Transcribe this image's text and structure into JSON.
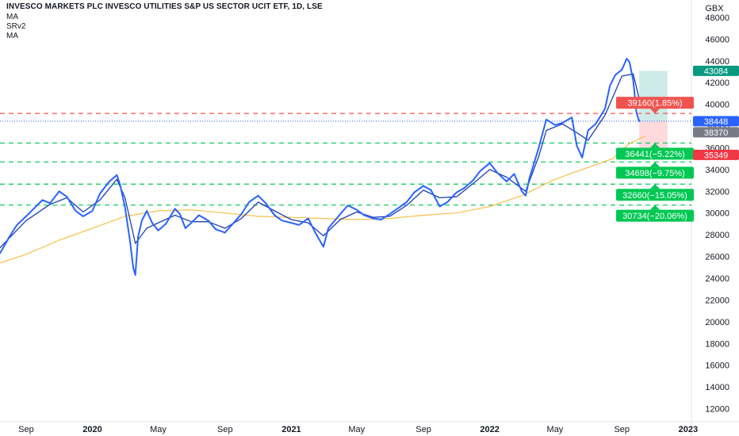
{
  "header": {
    "title": "INVESCO MARKETS PLC INVESCO UTILITIES S&P US SECTOR UCIT ETF, 1D, LSE",
    "indicator_1": "MA",
    "indicator_2": "SRv2",
    "indicator_3": "MA"
  },
  "colors": {
    "price": "#2962ff",
    "price_ma": "#1e40af",
    "slow_ma": "#f5c04a",
    "red_line": "#ef5350",
    "green_line": "#00c853",
    "price_dots": "#2962ff",
    "long_zone": "#b2dfdb",
    "stop_zone": "#ffcdd2",
    "axis_text": "#131722",
    "grid": "#f0f3fa"
  },
  "chart_data": {
    "type": "line",
    "currency": "GBX",
    "y_axis": {
      "ylim": [
        10800,
        49600
      ],
      "ticks": [
        12000,
        14000,
        16000,
        18000,
        20000,
        22000,
        24000,
        26000,
        28000,
        30000,
        32000,
        34000,
        36000,
        38000,
        40000,
        42000,
        44000,
        46000,
        48000
      ]
    },
    "x_axis": {
      "range": [
        "2019-07-15",
        "2023-01-07"
      ],
      "ticks": [
        {
          "date": "2019-09-01",
          "label": "Sep",
          "bold": false
        },
        {
          "date": "2020-01-01",
          "label": "2020",
          "bold": true
        },
        {
          "date": "2020-05-01",
          "label": "May",
          "bold": false
        },
        {
          "date": "2020-09-01",
          "label": "Sep",
          "bold": false
        },
        {
          "date": "2021-01-01",
          "label": "2021",
          "bold": true
        },
        {
          "date": "2021-05-01",
          "label": "May",
          "bold": false
        },
        {
          "date": "2021-09-01",
          "label": "Sep",
          "bold": false
        },
        {
          "date": "2022-01-01",
          "label": "2022",
          "bold": true
        },
        {
          "date": "2022-05-01",
          "label": "May",
          "bold": false
        },
        {
          "date": "2022-09-01",
          "label": "Sep",
          "bold": false
        },
        {
          "date": "2023-01-01",
          "label": "2023",
          "bold": true
        }
      ]
    },
    "price_series": [
      [
        "2019-07-15",
        26300
      ],
      [
        "2019-08-01",
        27800
      ],
      [
        "2019-08-15",
        28900
      ],
      [
        "2019-09-01",
        29700
      ],
      [
        "2019-09-15",
        30400
      ],
      [
        "2019-10-01",
        31200
      ],
      [
        "2019-10-15",
        30900
      ],
      [
        "2019-11-01",
        32000
      ],
      [
        "2019-11-15",
        31500
      ],
      [
        "2019-12-01",
        30200
      ],
      [
        "2019-12-15",
        29700
      ],
      [
        "2020-01-01",
        30200
      ],
      [
        "2020-01-15",
        31800
      ],
      [
        "2020-02-01",
        32900
      ],
      [
        "2020-02-15",
        33500
      ],
      [
        "2020-02-21",
        32600
      ],
      [
        "2020-03-01",
        30500
      ],
      [
        "2020-03-10",
        27500
      ],
      [
        "2020-03-16",
        25000
      ],
      [
        "2020-03-20",
        24300
      ],
      [
        "2020-03-25",
        27800
      ],
      [
        "2020-04-01",
        29300
      ],
      [
        "2020-04-10",
        30200
      ],
      [
        "2020-04-20",
        29100
      ],
      [
        "2020-05-01",
        28400
      ],
      [
        "2020-05-15",
        29000
      ],
      [
        "2020-06-01",
        30400
      ],
      [
        "2020-06-10",
        29900
      ],
      [
        "2020-06-20",
        28600
      ],
      [
        "2020-07-01",
        29100
      ],
      [
        "2020-07-15",
        29800
      ],
      [
        "2020-08-01",
        29300
      ],
      [
        "2020-08-15",
        28500
      ],
      [
        "2020-09-01",
        28200
      ],
      [
        "2020-09-15",
        29000
      ],
      [
        "2020-10-01",
        29900
      ],
      [
        "2020-10-15",
        31000
      ],
      [
        "2020-11-01",
        31600
      ],
      [
        "2020-11-15",
        30900
      ],
      [
        "2020-12-01",
        29800
      ],
      [
        "2020-12-15",
        29300
      ],
      [
        "2021-01-01",
        29100
      ],
      [
        "2021-01-15",
        28900
      ],
      [
        "2021-02-01",
        29500
      ],
      [
        "2021-02-15",
        28100
      ],
      [
        "2021-03-01",
        26900
      ],
      [
        "2021-03-10",
        28600
      ],
      [
        "2021-04-01",
        29900
      ],
      [
        "2021-04-15",
        30700
      ],
      [
        "2021-05-01",
        30300
      ],
      [
        "2021-05-15",
        29800
      ],
      [
        "2021-06-01",
        29500
      ],
      [
        "2021-06-15",
        29400
      ],
      [
        "2021-07-01",
        29900
      ],
      [
        "2021-07-15",
        30400
      ],
      [
        "2021-08-01",
        31000
      ],
      [
        "2021-08-15",
        31900
      ],
      [
        "2021-09-01",
        32500
      ],
      [
        "2021-09-15",
        32100
      ],
      [
        "2021-10-01",
        30600
      ],
      [
        "2021-10-15",
        31000
      ],
      [
        "2021-11-01",
        31900
      ],
      [
        "2021-11-15",
        32300
      ],
      [
        "2021-12-01",
        33000
      ],
      [
        "2021-12-15",
        33900
      ],
      [
        "2022-01-01",
        34600
      ],
      [
        "2022-01-15",
        33700
      ],
      [
        "2022-02-01",
        32900
      ],
      [
        "2022-02-15",
        33600
      ],
      [
        "2022-03-01",
        32000
      ],
      [
        "2022-03-08",
        31600
      ],
      [
        "2022-03-15",
        33200
      ],
      [
        "2022-04-01",
        36000
      ],
      [
        "2022-04-15",
        38600
      ],
      [
        "2022-05-01",
        38100
      ],
      [
        "2022-05-15",
        38300
      ],
      [
        "2022-06-01",
        38800
      ],
      [
        "2022-06-10",
        36200
      ],
      [
        "2022-06-20",
        35100
      ],
      [
        "2022-07-01",
        37600
      ],
      [
        "2022-07-15",
        38200
      ],
      [
        "2022-08-01",
        39600
      ],
      [
        "2022-08-10",
        41700
      ],
      [
        "2022-08-20",
        42700
      ],
      [
        "2022-09-01",
        43200
      ],
      [
        "2022-09-10",
        44200
      ],
      [
        "2022-09-15",
        43900
      ],
      [
        "2022-09-22",
        42200
      ],
      [
        "2022-09-28",
        39200
      ],
      [
        "2022-10-03",
        38448
      ]
    ],
    "ma_short_series": [
      [
        "2019-07-15",
        26800
      ],
      [
        "2019-09-01",
        29300
      ],
      [
        "2019-10-15",
        30800
      ],
      [
        "2019-11-15",
        31400
      ],
      [
        "2019-12-15",
        30100
      ],
      [
        "2020-01-15",
        31200
      ],
      [
        "2020-02-15",
        33100
      ],
      [
        "2020-03-01",
        31400
      ],
      [
        "2020-03-20",
        27200
      ],
      [
        "2020-04-10",
        28600
      ],
      [
        "2020-05-01",
        29100
      ],
      [
        "2020-06-01",
        29800
      ],
      [
        "2020-07-01",
        29200
      ],
      [
        "2020-08-01",
        29200
      ],
      [
        "2020-09-01",
        28600
      ],
      [
        "2020-10-01",
        29500
      ],
      [
        "2020-11-01",
        31000
      ],
      [
        "2020-12-01",
        30200
      ],
      [
        "2021-01-01",
        29400
      ],
      [
        "2021-02-01",
        29100
      ],
      [
        "2021-03-01",
        27900
      ],
      [
        "2021-04-01",
        29400
      ],
      [
        "2021-05-01",
        30100
      ],
      [
        "2021-06-01",
        29600
      ],
      [
        "2021-07-01",
        29700
      ],
      [
        "2021-08-01",
        30700
      ],
      [
        "2021-09-01",
        32100
      ],
      [
        "2021-10-01",
        31400
      ],
      [
        "2021-11-01",
        31500
      ],
      [
        "2021-12-01",
        32700
      ],
      [
        "2022-01-01",
        34000
      ],
      [
        "2022-02-01",
        33300
      ],
      [
        "2022-03-08",
        32000
      ],
      [
        "2022-04-01",
        35200
      ],
      [
        "2022-04-15",
        37600
      ],
      [
        "2022-05-15",
        38200
      ],
      [
        "2022-06-10",
        37400
      ],
      [
        "2022-07-01",
        36700
      ],
      [
        "2022-08-01",
        39000
      ],
      [
        "2022-09-01",
        42600
      ],
      [
        "2022-09-22",
        42800
      ],
      [
        "2022-10-03",
        40500
      ]
    ],
    "ma_long_series": [
      [
        "2019-07-15",
        25400
      ],
      [
        "2019-09-01",
        26200
      ],
      [
        "2019-11-01",
        27500
      ],
      [
        "2020-01-01",
        28600
      ],
      [
        "2020-03-01",
        29700
      ],
      [
        "2020-05-01",
        30200
      ],
      [
        "2020-07-01",
        30300
      ],
      [
        "2020-09-01",
        30000
      ],
      [
        "2020-11-01",
        29700
      ],
      [
        "2021-01-01",
        29600
      ],
      [
        "2021-03-01",
        29500
      ],
      [
        "2021-05-01",
        29400
      ],
      [
        "2021-07-01",
        29500
      ],
      [
        "2021-09-01",
        29800
      ],
      [
        "2021-11-01",
        30000
      ],
      [
        "2022-01-01",
        30600
      ],
      [
        "2022-03-01",
        31600
      ],
      [
        "2022-05-01",
        33100
      ],
      [
        "2022-07-01",
        34200
      ],
      [
        "2022-08-15",
        35000
      ],
      [
        "2022-09-15",
        36400
      ],
      [
        "2022-10-15",
        37100
      ]
    ],
    "horizontal_levels": [
      {
        "value": 39160,
        "style": "dashed",
        "color_key": "red_line"
      },
      {
        "value": 38448,
        "style": "dotted",
        "color_key": "price_dots"
      },
      {
        "value": 36441,
        "style": "dashed",
        "color_key": "green_line"
      },
      {
        "value": 34698,
        "style": "dashed",
        "color_key": "green_line"
      },
      {
        "value": 32660,
        "style": "dashed",
        "color_key": "green_line"
      },
      {
        "value": 30734,
        "style": "dashed",
        "color_key": "green_line"
      }
    ],
    "position_tool": {
      "start": "2022-10-03",
      "end": "2022-11-24",
      "entry": 38448,
      "target": 43084,
      "stop": 35349
    },
    "level_labels": [
      {
        "text": "39160(1.85%)",
        "value": 39160,
        "bg": "#ef5350",
        "arrow": "down"
      },
      {
        "text": "36441(−5.22%)",
        "value": 36441,
        "bg": "#00c853",
        "arrow": "up"
      },
      {
        "text": "34698(−9.75%)",
        "value": 34698,
        "bg": "#00c853",
        "arrow": "up"
      },
      {
        "text": "32660(−15.05%)",
        "value": 32660,
        "bg": "#00c853",
        "arrow": "up"
      },
      {
        "text": "30734(−20.06%)",
        "value": 30734,
        "bg": "#00c853",
        "arrow": "up"
      }
    ],
    "price_tags": [
      {
        "text": "43084",
        "value": 43084,
        "bg": "#089981"
      },
      {
        "text": "38448",
        "value": 38448,
        "bg": "#2962ff"
      },
      {
        "text": "38370",
        "value": 38370,
        "bg": "#787b86"
      },
      {
        "text": "35349",
        "value": 35349,
        "bg": "#f23645"
      }
    ]
  }
}
